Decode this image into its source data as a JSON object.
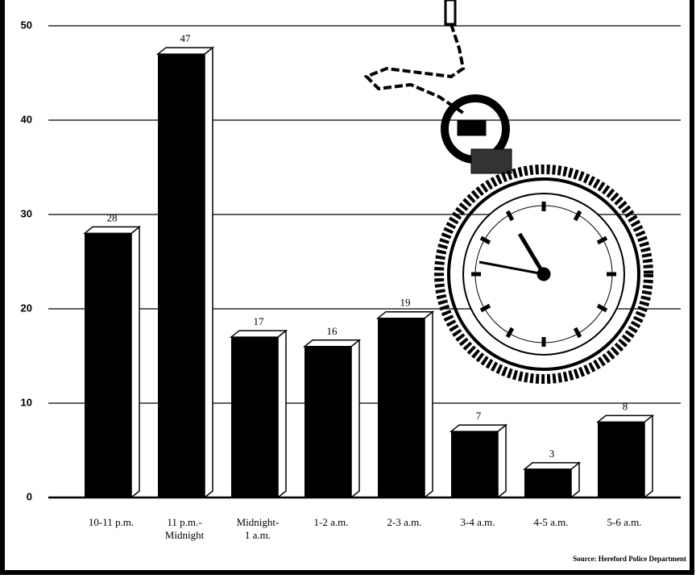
{
  "chart_data": {
    "type": "bar",
    "categories": [
      "10-11 p.m.",
      "11 p.m.-\nMidnight",
      "Midnight-\n1 a.m.",
      "1-2 a.m.",
      "2-3 a.m.",
      "3-4 a.m.",
      "4-5 a.m.",
      "5-6 a.m."
    ],
    "values": [
      28,
      47,
      17,
      16,
      19,
      7,
      3,
      8
    ],
    "color": "#000000",
    "ylim": [
      0,
      50
    ],
    "yticks": [
      0,
      10,
      20,
      30,
      40,
      50
    ],
    "grid": true,
    "source": "Source: Hereford Police Department"
  }
}
